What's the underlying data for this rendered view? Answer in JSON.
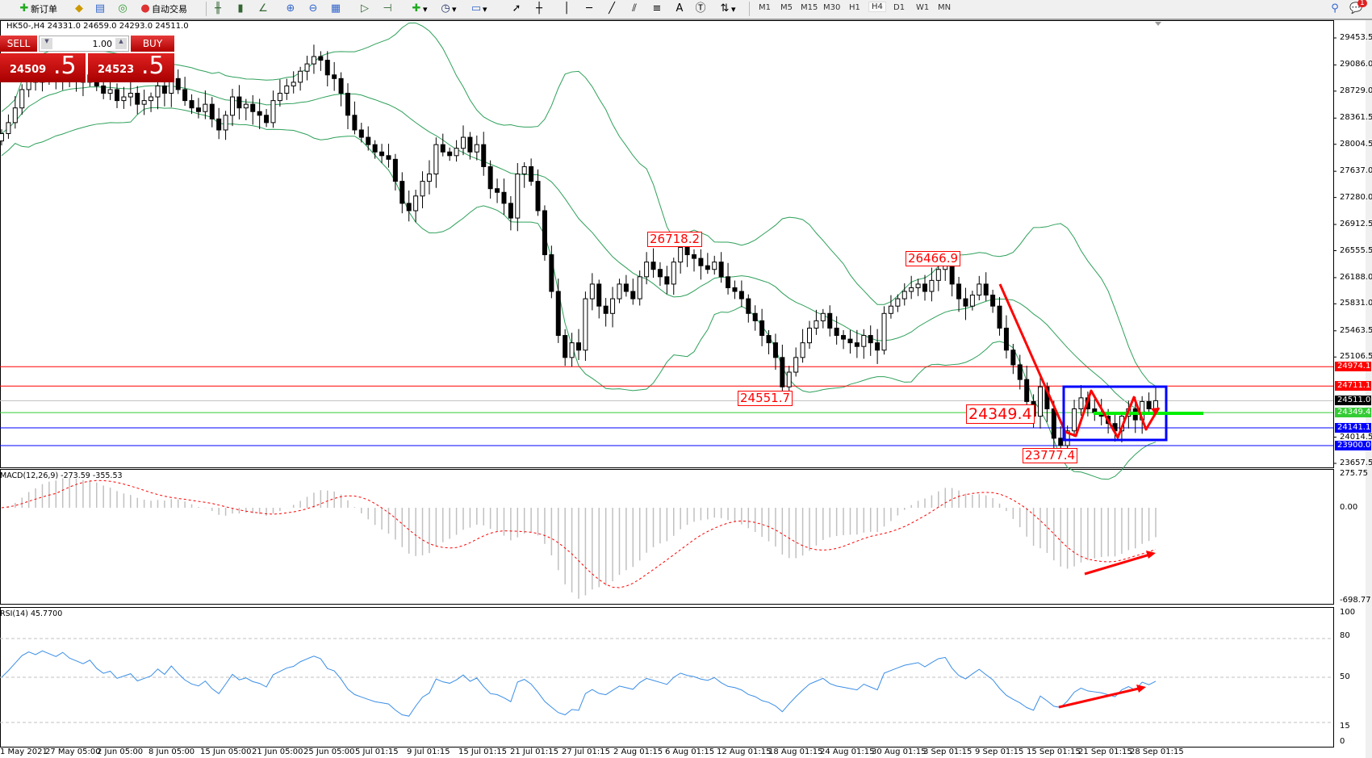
{
  "toolbar": {
    "new_order": "新订单",
    "auto_trading": "自动交易",
    "timeframes": [
      "M1",
      "M5",
      "M15",
      "M30",
      "H1",
      "H4",
      "D1",
      "W1",
      "MN"
    ],
    "active_timeframe": "H4",
    "notification_count": "1"
  },
  "chart_header": "HK50-,H4  24331.0 24659.0 24293.0 24511.0",
  "trade_panel": {
    "sell_label": "SELL",
    "buy_label": "BUY",
    "lot": "1.00",
    "sell_price_main": "24509",
    "sell_price_big": ".5",
    "buy_price_main": "24523",
    "buy_price_big": ".5"
  },
  "price_axis": [
    "29453.5",
    "29086.0",
    "28729.0",
    "28361.5",
    "28004.5",
    "27637.0",
    "27280.0",
    "26912.5",
    "26555.5",
    "26188.0",
    "25831.0",
    "25463.5",
    "25106.5",
    "24014.5",
    "23657.5"
  ],
  "levels": [
    {
      "value": "24974.1",
      "color": "#ff0000"
    },
    {
      "value": "24711.1",
      "color": "#ff0000"
    },
    {
      "value": "24511.0",
      "color": "#000000",
      "line": "#c0c0c0"
    },
    {
      "value": "24349.4",
      "color": "#33cc33"
    },
    {
      "value": "24141.1",
      "color": "#0000ff"
    },
    {
      "value": "23900.0",
      "color": "#0000ff"
    }
  ],
  "annotations": [
    "26718.2",
    "26466.9",
    "24551.7",
    "24349.4",
    "23777.4"
  ],
  "macd": {
    "label": "MACD(12,26,9) -273.59 -355.53",
    "axis": [
      "275.75",
      "0.00",
      "-698.77"
    ]
  },
  "rsi": {
    "label": "RSI(14) 45.7700",
    "axis": [
      "100",
      "80",
      "50",
      "15",
      "0"
    ],
    "levels": [
      80,
      50,
      15
    ]
  },
  "time_axis": [
    "1 May 2021",
    "27 May 05:00",
    "2 Jun 05:00",
    "8 Jun 05:00",
    "15 Jun 05:00",
    "21 Jun 05:00",
    "25 Jun 05:00",
    "5 Jul 01:15",
    "9 Jul 01:15",
    "15 Jul 01:15",
    "21 Jul 01:15",
    "27 Jul 01:15",
    "2 Aug 01:15",
    "6 Aug 01:15",
    "12 Aug 01:15",
    "18 Aug 01:15",
    "24 Aug 01:15",
    "30 Aug 01:15",
    "3 Sep 01:15",
    "9 Sep 01:15",
    "15 Sep 01:15",
    "21 Sep 01:15",
    "28 Sep 01:15"
  ],
  "colors": {
    "bands": "#2ea05a",
    "macd_hist": "#c0c0c0",
    "macd_signal": "#ff0000",
    "rsi": "#3a8ee6",
    "drawings_red": "#ff0000",
    "box_blue": "#0000ff",
    "green_line": "#00ee00"
  },
  "chart_data": {
    "type": "candlestick",
    "symbol": "HK50-",
    "timeframe": "H4",
    "ylim": [
      23657.5,
      29453.5
    ],
    "closes": [
      28150,
      28300,
      28500,
      28750,
      28900,
      28850,
      29000,
      28950,
      28900,
      29050,
      28950,
      28900,
      28850,
      28950,
      28800,
      28700,
      28750,
      28600,
      28650,
      28700,
      28550,
      28600,
      28650,
      28800,
      28700,
      28900,
      28750,
      28600,
      28500,
      28450,
      28550,
      28350,
      28200,
      28400,
      28650,
      28500,
      28550,
      28450,
      28400,
      28300,
      28600,
      28700,
      28800,
      28850,
      29000,
      29100,
      29200,
      29150,
      28950,
      28900,
      28700,
      28400,
      28200,
      28100,
      28000,
      27900,
      27850,
      27800,
      27500,
      27200,
      27100,
      27300,
      27500,
      27600,
      28000,
      27900,
      27850,
      27950,
      28100,
      27900,
      28000,
      27700,
      27400,
      27350,
      27200,
      27000,
      27600,
      27700,
      27500,
      27100,
      26500,
      26000,
      25400,
      25100,
      25300,
      25200,
      25900,
      26100,
      25800,
      25700,
      25900,
      26100,
      26000,
      25900,
      26200,
      26400,
      26300,
      26200,
      26100,
      26400,
      26600,
      26500,
      26450,
      26350,
      26300,
      26400,
      26200,
      26050,
      26000,
      25900,
      25700,
      25600,
      25400,
      25300,
      25100,
      24700,
      24900,
      25100,
      25300,
      25500,
      25600,
      25700,
      25500,
      25400,
      25350,
      25300,
      25250,
      25400,
      25300,
      25200,
      25700,
      25800,
      25900,
      26000,
      26050,
      26100,
      26000,
      26150,
      26300,
      26350,
      26100,
      25900,
      25800,
      25950,
      26100,
      25950,
      25800,
      25500,
      25200,
      25000,
      24800,
      24500,
      24300,
      24700,
      24400,
      24000,
      23900,
      24100,
      24400,
      24550,
      24400,
      24350,
      24300,
      24200,
      24100,
      24300,
      24400,
      24250,
      24500,
      24400,
      24511
    ]
  }
}
